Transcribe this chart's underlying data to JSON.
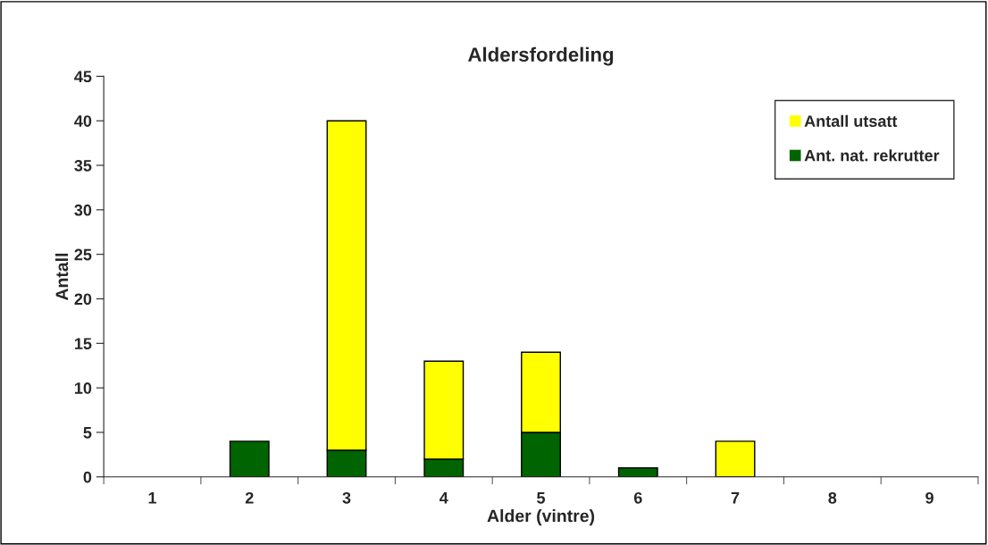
{
  "chart_data": {
    "type": "bar",
    "title": "Aldersfordeling",
    "xlabel": "Alder (vintre)",
    "ylabel": "Antall",
    "categories": [
      "1",
      "2",
      "3",
      "4",
      "5",
      "6",
      "7",
      "8",
      "9"
    ],
    "series": [
      {
        "name": "Ant. nat. rekrutter",
        "color": "#006400",
        "values": [
          0,
          4,
          3,
          2,
          5,
          1,
          0,
          0,
          0
        ]
      },
      {
        "name": "Antall utsatt",
        "color": "#ffff00",
        "values": [
          0,
          0,
          37,
          11,
          9,
          0,
          4,
          0,
          0
        ]
      }
    ],
    "stacked": true,
    "ylim": [
      0,
      45
    ],
    "yticks": [
      0,
      5,
      10,
      15,
      20,
      25,
      30,
      35,
      40,
      45
    ],
    "grid": false,
    "legend": "top right"
  }
}
